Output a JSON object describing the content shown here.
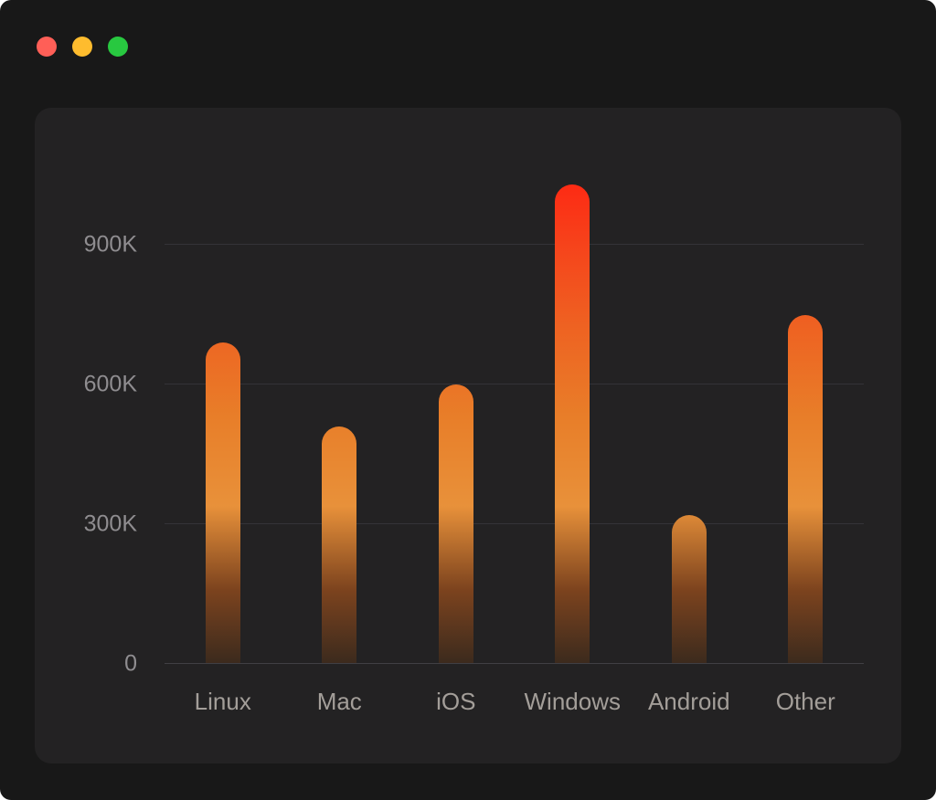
{
  "window": {
    "traffic_lights": {
      "close": "#ff5f57",
      "minimize": "#febc2e",
      "zoom": "#28c840"
    }
  },
  "chart_data": {
    "type": "bar",
    "title": "",
    "categories": [
      "Linux",
      "Mac",
      "iOS",
      "Windows",
      "Android",
      "Other"
    ],
    "values": [
      690,
      510,
      600,
      1030,
      320,
      750
    ],
    "value_unit": "K",
    "xlabel": "",
    "ylabel": "",
    "y_ticks": [
      "900K",
      "600K",
      "300K",
      "0"
    ],
    "y_tick_values": [
      900,
      600,
      300,
      0
    ],
    "ylim": [
      0,
      1100
    ],
    "grid": true,
    "legend": false,
    "bar_gradient": [
      "#3b2a1d 0%",
      "#7c431e 15%",
      "#e8913a 32%",
      "#e87e29 50%",
      "#ee6322 68%",
      "#f6431b 85%",
      "#ff2512 100%"
    ]
  }
}
